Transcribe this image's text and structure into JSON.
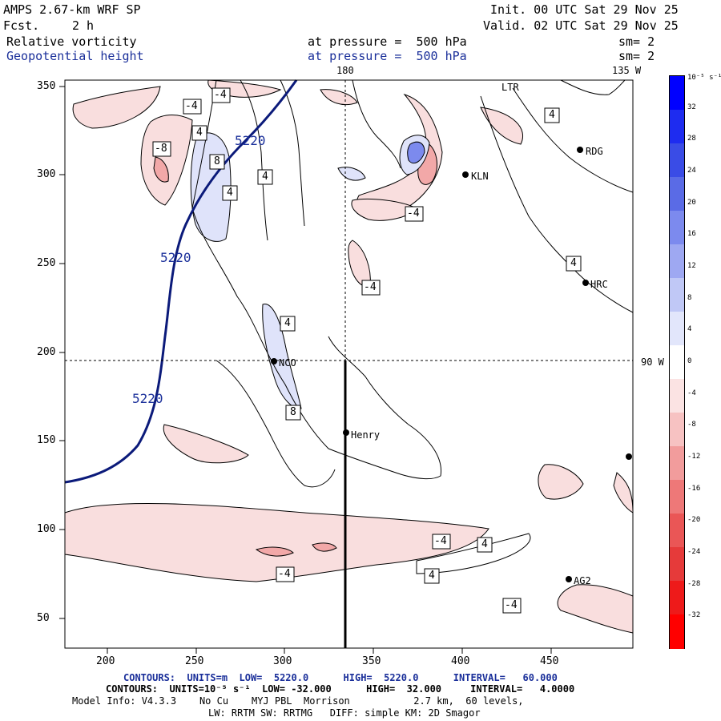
{
  "header": {
    "model": "AMPS 2.67-km WRF SP",
    "fcst_label": "Fcst.",
    "fcst_value": "2 h",
    "init": "Init. 00 UTC Sat 29 Nov 25",
    "valid": "Valid. 02 UTC Sat 29 Nov 25",
    "field1": "Relative vorticity",
    "field1_level": "at pressure =  500 hPa",
    "field1_sm": "sm= 2",
    "field2": "Geopotential height",
    "field2_level": "at pressure =  500 hPa",
    "field2_sm": "sm= 2"
  },
  "map": {
    "lon_180": "180",
    "lon_135w": "135 W",
    "lat_90w": "90 W",
    "x_ticks": [
      "200",
      "250",
      "300",
      "350",
      "400",
      "450"
    ],
    "y_ticks": [
      "350",
      "300",
      "250",
      "200",
      "150",
      "100",
      "50"
    ],
    "stations": [
      {
        "name": "NCO"
      },
      {
        "name": "Henry"
      },
      {
        "name": "RDG"
      },
      {
        "name": "KLN"
      },
      {
        "name": "HRC"
      },
      {
        "name": "AG2"
      },
      {
        "name": "LTR"
      }
    ],
    "height_labels": [
      "5220",
      "5220",
      "5220"
    ],
    "vort_labels": [
      "-4",
      "-4",
      "4",
      "-8",
      "8",
      "4",
      "4",
      "4",
      "-4",
      "-4",
      "4",
      "4",
      "8",
      "-4",
      "4",
      "4",
      "-4",
      "-4"
    ]
  },
  "colorbar": {
    "unit": "10⁻⁵ s⁻¹",
    "labels": [
      "32",
      "28",
      "24",
      "20",
      "16",
      "12",
      "8",
      "4",
      "0",
      "-4",
      "-8",
      "-12",
      "-16",
      "-20",
      "-24",
      "-28",
      "-32"
    ],
    "colors": [
      "#0000ff",
      "#1e2cf0",
      "#3a4ce6",
      "#5a6be6",
      "#7c8aee",
      "#9ea8f2",
      "#c0c8f6",
      "#e2e6fb",
      "#ffffff",
      "#fbe3e3",
      "#f7c2c2",
      "#f29c9c",
      "#ee7878",
      "#ea5656",
      "#e63a3a",
      "#ee1a1a",
      "#ff0000"
    ]
  },
  "footer": {
    "line1": "CONTOURS:  UNITS=m  LOW=  5220.0      HIGH=  5220.0      INTERVAL=   60.000",
    "line2": "CONTOURS:  UNITS=10⁻⁵ s⁻¹  LOW= -32.000      HIGH=  32.000     INTERVAL=   4.0000",
    "line3": "Model Info: V4.3.3    No Cu    MYJ PBL  Morrison           2.7 km,  60 levels,",
    "line4": "LW: RRTM SW: RRTMG   DIFF: simple KM: 2D Smagor"
  }
}
